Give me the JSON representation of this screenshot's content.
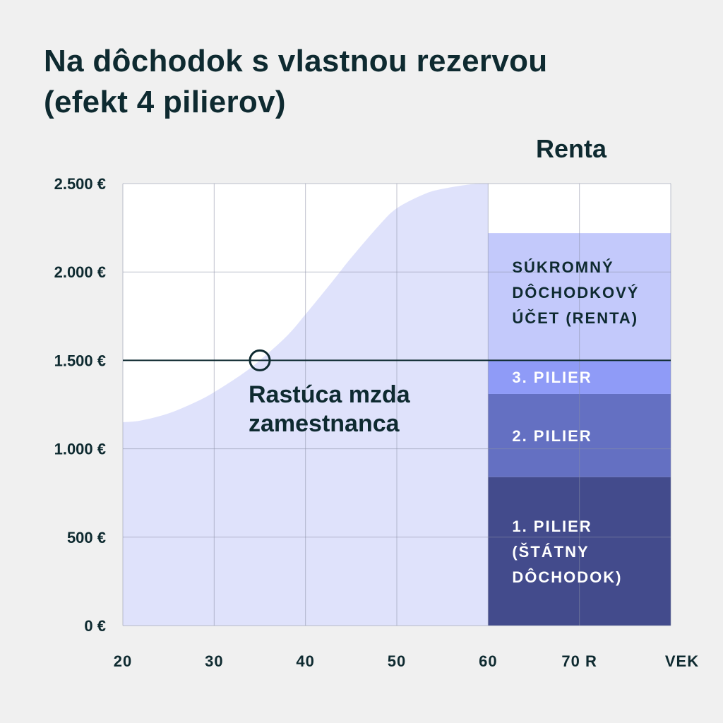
{
  "title_lines": [
    "Na dôchodok s vlastnou rezervou",
    "(efekt 4 pilierov)"
  ],
  "renta_label": "Renta",
  "chart_data": {
    "type": "area",
    "title": "Na dôchodok s vlastnou rezervou (efekt 4 pilierov)",
    "xlabel": "VEK",
    "ylabel": "",
    "xlim": [
      20,
      80
    ],
    "ylim": [
      0,
      2500
    ],
    "grid": true,
    "x_ticks": [
      {
        "value": 20,
        "label": "20"
      },
      {
        "value": 30,
        "label": "30"
      },
      {
        "value": 40,
        "label": "40"
      },
      {
        "value": 50,
        "label": "50"
      },
      {
        "value": 60,
        "label": "60"
      },
      {
        "value": 70,
        "label": "70 R"
      },
      {
        "value": 80,
        "label": "VEK"
      }
    ],
    "y_ticks": [
      {
        "value": 0,
        "label": "0 €"
      },
      {
        "value": 500,
        "label": "500 €"
      },
      {
        "value": 1000,
        "label": "1.000 €"
      },
      {
        "value": 1500,
        "label": "1.500 €"
      },
      {
        "value": 2000,
        "label": "2.000 €"
      },
      {
        "value": 2500,
        "label": "2.500 €"
      }
    ],
    "wage_series": {
      "name": "Rastúca mzda zamestnanca",
      "x": [
        20,
        22,
        25,
        28,
        30,
        33,
        35,
        38,
        40,
        43,
        45,
        48,
        50,
        53,
        55,
        58,
        60
      ],
      "y": [
        1150,
        1160,
        1200,
        1265,
        1320,
        1420,
        1500,
        1640,
        1760,
        1950,
        2080,
        2260,
        2360,
        2440,
        2470,
        2495,
        2500
      ]
    },
    "reference_line": {
      "y": 1500
    },
    "marker": {
      "x": 35,
      "y": 1500
    },
    "annotation": {
      "lines": [
        "Rastúca mzda",
        "zamestnanca"
      ]
    },
    "renta_stack": {
      "x_start": 60,
      "x_end": 80,
      "segments": [
        {
          "name": "1. pilier (štátny dôchodok)",
          "from": 0,
          "to": 840,
          "color": "#434b8c",
          "label_lines": [
            "1. PILIER",
            "(ŠTÁTNY",
            "DÔCHODOK)"
          ],
          "label_dark": false
        },
        {
          "name": "2. pilier",
          "from": 840,
          "to": 1310,
          "color": "#6470c2",
          "label_lines": [
            "2. PILIER"
          ],
          "label_dark": false
        },
        {
          "name": "3. pilier",
          "from": 1310,
          "to": 1500,
          "color": "#8f9bf7",
          "label_lines": [
            "3. PILIER"
          ],
          "label_dark": false
        },
        {
          "name": "Súkromný dôchodkový účet (renta)",
          "from": 1500,
          "to": 2220,
          "color": "#c3c9fb",
          "label_lines": [
            "SÚKROMNÝ",
            "DÔCHODKOVÝ",
            "ÚČET (RENTA)"
          ],
          "label_dark": true
        }
      ]
    },
    "colors": {
      "background": "#f0f0f0",
      "plot_bg": "#ffffff",
      "wage_area": "#dfe2fb",
      "grid": "#8a8fa6",
      "line": "#0e2a30"
    }
  }
}
